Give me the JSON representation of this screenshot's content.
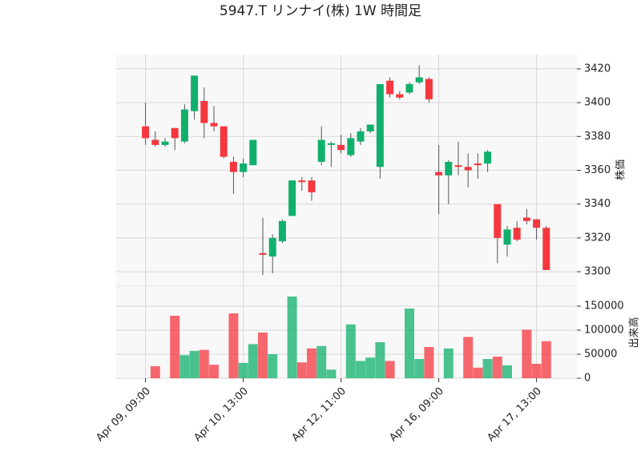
{
  "chart_data": {
    "type": "candlestick",
    "title": "5947.T リンナイ(株) 1W 時間足",
    "ylabel": "株価",
    "y2label": "出来高",
    "categories": [
      "Apr 09, 09:00",
      null,
      null,
      null,
      null,
      null,
      null,
      null,
      null,
      null,
      "Apr 10, 13:00",
      null,
      null,
      null,
      null,
      null,
      null,
      null,
      null,
      null,
      "Apr 12, 11:00",
      null,
      null,
      null,
      null,
      null,
      null,
      null,
      null,
      null,
      "Apr 16, 09:00",
      null,
      null,
      null,
      null,
      null,
      null,
      null,
      null,
      null,
      "Apr 17, 13:00",
      null
    ],
    "open": [
      3386,
      3378,
      3375,
      3385,
      3377,
      3395,
      3401,
      3388,
      3386,
      3365,
      3359,
      3363,
      3311,
      3309,
      3318,
      3333,
      3354,
      3354,
      3365,
      3375,
      3375,
      3369,
      3377,
      3383,
      3362,
      3413,
      3405,
      3406,
      3412,
      3414,
      3359,
      3357,
      3363,
      3362,
      3364,
      3364,
      3340,
      3316,
      3326,
      3332,
      3331,
      3326
    ],
    "high": [
      3400,
      3383,
      3379,
      3385,
      3399,
      3416,
      3409,
      3398,
      3386,
      3368,
      3367,
      3378,
      3332,
      3322,
      3331,
      3354,
      3356,
      3356,
      3386,
      3377,
      3381,
      3382,
      3385,
      3387,
      3411,
      3415,
      3407,
      3412,
      3422,
      3415,
      3375,
      3366,
      3377,
      3370,
      3370,
      3372,
      3340,
      3327,
      3330,
      3337,
      3331,
      3327
    ],
    "low": [
      3375,
      3374,
      3374,
      3372,
      3376,
      3390,
      3379,
      3383,
      3367,
      3346,
      3356,
      3363,
      3298,
      3299,
      3317,
      3333,
      3348,
      3342,
      3363,
      3362,
      3370,
      3368,
      3375,
      3382,
      3355,
      3403,
      3402,
      3405,
      3411,
      3400,
      3334,
      3340,
      3357,
      3350,
      3355,
      3359,
      3305,
      3309,
      3318,
      3328,
      3319,
      3301
    ],
    "close": [
      3379,
      3375,
      3377,
      3379,
      3396,
      3416,
      3388,
      3386,
      3368,
      3359,
      3364,
      3378,
      3310,
      3320,
      3330,
      3354,
      3353,
      3347,
      3378,
      3376,
      3372,
      3379,
      3383,
      3387,
      3411,
      3405,
      3403,
      3411,
      3415,
      3402,
      3357,
      3365,
      3362,
      3360,
      3363,
      3371,
      3320,
      3325,
      3319,
      3330,
      3326,
      3301
    ],
    "volume": [
      0,
      25000,
      0,
      130000,
      48000,
      57000,
      59000,
      28000,
      0,
      135000,
      32000,
      71000,
      95000,
      50000,
      0,
      170000,
      33000,
      62000,
      67000,
      18000,
      0,
      112000,
      36000,
      43000,
      75000,
      36000,
      0,
      145000,
      40000,
      65000,
      0,
      62000,
      0,
      86000,
      22000,
      40000,
      45000,
      27000,
      0,
      101000,
      30000,
      77000
    ],
    "up_color": "#0fb06c",
    "down_color": "#f5373f",
    "ylim": [
      3291.5,
      3428.5
    ],
    "yticks": [
      3300,
      3320,
      3340,
      3360,
      3380,
      3400,
      3420
    ],
    "y2lim": [
      0,
      191667
    ],
    "y2ticks": [
      0,
      50000,
      100000,
      150000
    ],
    "grid": true
  }
}
